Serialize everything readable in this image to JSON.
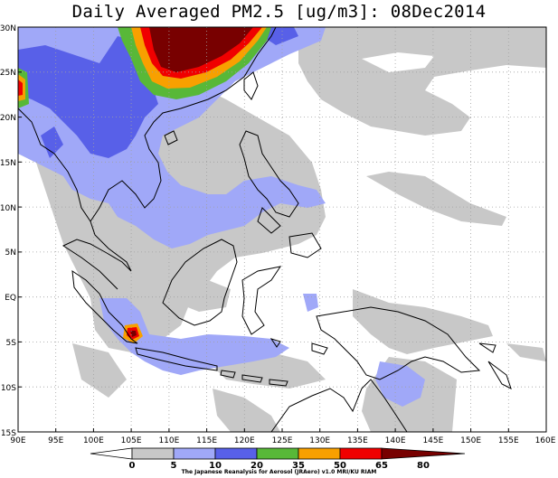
{
  "title": "Daily Averaged PM2.5 [ug/m3]: 08Dec2014",
  "map": {
    "lon_range": [
      90,
      160
    ],
    "lat_range": [
      -15,
      30
    ],
    "lon_ticks": [
      "90E",
      "95E",
      "100E",
      "105E",
      "110E",
      "115E",
      "120E",
      "125E",
      "130E",
      "135E",
      "140E",
      "145E",
      "150E",
      "155E",
      "160E"
    ],
    "lat_ticks": [
      "30N",
      "25N",
      "20N",
      "15N",
      "10N",
      "5N",
      "EQ",
      "5S",
      "10S",
      "15S"
    ],
    "gridlines": "dotted"
  },
  "colorbar": {
    "levels": [
      "0",
      "5",
      "10",
      "20",
      "35",
      "50",
      "65",
      "80"
    ],
    "colors": [
      "#ffffff",
      "#c8c8c8",
      "#a0a8f8",
      "#5860e8",
      "#58b838",
      "#f8a000",
      "#f00000",
      "#780000"
    ]
  },
  "credit": "The Japanese Reanalysis for Aerosol (JRAero) v1.0 MRI/KU RIAM"
}
